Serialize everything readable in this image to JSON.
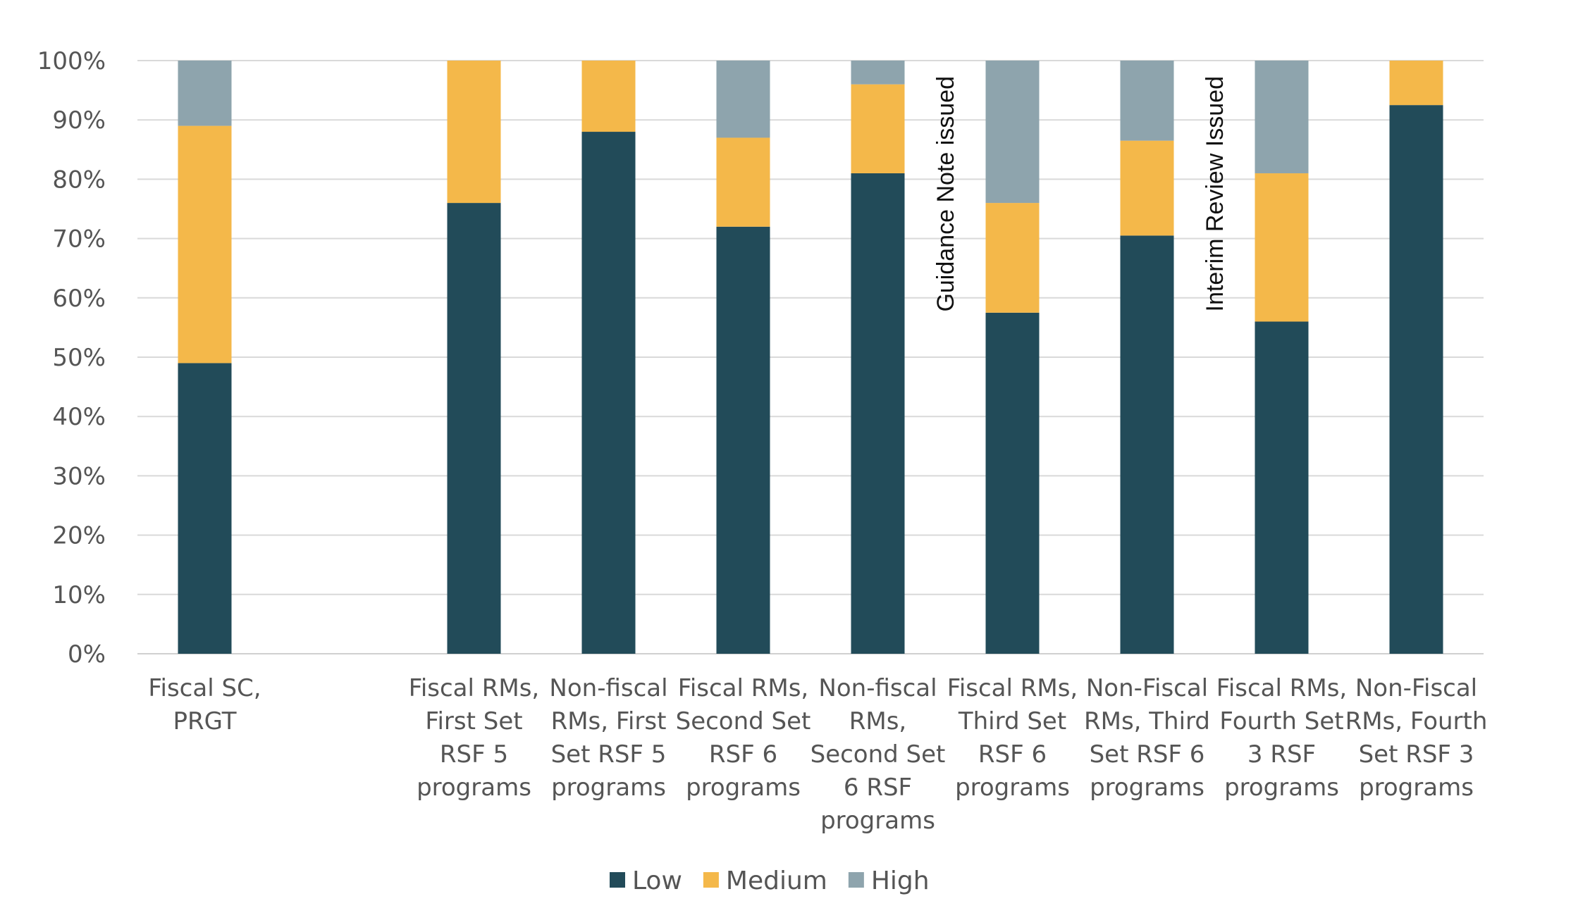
{
  "chart_data": {
    "type": "bar",
    "stacked": true,
    "title": "",
    "xlabel": "",
    "ylabel": "",
    "ylim": [
      0,
      100
    ],
    "yticks": [
      "0%",
      "10%",
      "20%",
      "30%",
      "40%",
      "50%",
      "60%",
      "70%",
      "80%",
      "90%",
      "100%"
    ],
    "grid": true,
    "legend_position": "bottom",
    "colors": {
      "Low": "#224b59",
      "Medium": "#f4b84a",
      "High": "#8ea4ad",
      "grid": "#d9d9d9",
      "axis": "#d0d0d0"
    },
    "categories": [
      [
        "Fiscal SC,",
        "PRGT"
      ],
      [],
      [
        "Fiscal RMs,",
        "First Set",
        "RSF 5",
        "programs"
      ],
      [
        "Non-fiscal",
        "RMs, First",
        "Set RSF 5",
        "programs"
      ],
      [
        "Fiscal RMs,",
        "Second Set",
        "RSF 6",
        "programs"
      ],
      [
        "Non-fiscal",
        "RMs,",
        "Second Set",
        "6 RSF",
        "programs"
      ],
      [
        "Fiscal RMs,",
        "Third Set",
        "RSF 6",
        "programs"
      ],
      [
        "Non-Fiscal",
        "RMs, Third",
        "Set RSF 6",
        "programs"
      ],
      [
        "Fiscal RMs,",
        "Fourth Set",
        "3 RSF",
        "programs"
      ],
      [
        "Non-Fiscal",
        "RMs, Fourth",
        "Set RSF 3",
        "programs"
      ]
    ],
    "series": [
      {
        "name": "Low",
        "values": [
          49,
          null,
          76,
          88,
          72,
          81,
          57.5,
          70.5,
          56,
          92.5
        ]
      },
      {
        "name": "Medium",
        "values": [
          40,
          null,
          24,
          12,
          15,
          15,
          18.5,
          16,
          25,
          7.5
        ]
      },
      {
        "name": "High",
        "values": [
          11,
          null,
          0,
          0,
          13,
          4,
          24,
          13.5,
          19,
          0
        ]
      }
    ],
    "annotations": [
      {
        "text": "Guidance Note issued",
        "between": [
          5,
          6
        ]
      },
      {
        "text": "Interim Review Issued",
        "between": [
          7,
          8
        ]
      }
    ]
  }
}
